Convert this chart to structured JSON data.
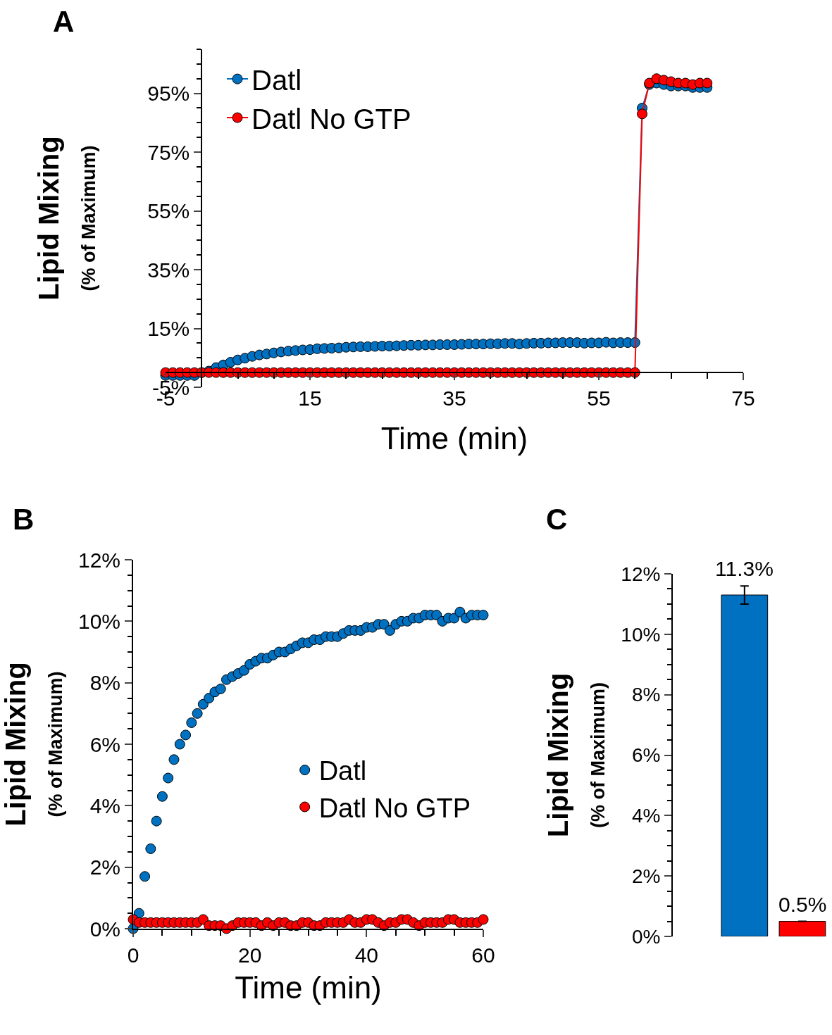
{
  "chart_data": [
    {
      "type": "line",
      "marker": "circle",
      "xlabel": "Time (min)",
      "ylabel": "Lipid Mixing\n(% of Maximum)",
      "annotations": [
        "A"
      ],
      "legend": "top left",
      "x": [
        -5,
        -4,
        -3,
        -2,
        -1,
        0,
        1,
        2,
        3,
        4,
        5,
        6,
        7,
        8,
        9,
        10,
        11,
        12,
        13,
        14,
        15,
        16,
        17,
        18,
        19,
        20,
        21,
        22,
        23,
        24,
        25,
        26,
        27,
        28,
        29,
        30,
        31,
        32,
        33,
        34,
        35,
        36,
        37,
        38,
        39,
        40,
        41,
        42,
        43,
        44,
        45,
        46,
        47,
        48,
        49,
        50,
        51,
        52,
        53,
        54,
        55,
        56,
        57,
        58,
        59,
        60,
        61,
        62,
        63,
        64,
        65,
        66,
        67,
        68,
        69,
        70
      ],
      "xlim": [
        -5,
        75
      ],
      "xticks": [
        -5,
        15,
        35,
        55,
        75
      ],
      "ylim": [
        -5,
        110
      ],
      "yticks": [
        {
          "value": -5,
          "label": "-5%"
        },
        {
          "value": 15,
          "label": "15%"
        },
        {
          "value": 35,
          "label": "35%"
        },
        {
          "value": 55,
          "label": "55%"
        },
        {
          "value": 75,
          "label": "75%"
        },
        {
          "value": 95,
          "label": "95%"
        }
      ],
      "series": [
        {
          "name": "Datl",
          "color": "#0070c0",
          "values": [
            -1,
            -1,
            -1,
            -1,
            -1,
            0,
            0.5,
            1.7,
            2.6,
            3.5,
            4.3,
            4.9,
            5.5,
            6.0,
            6.3,
            6.7,
            7.0,
            7.3,
            7.5,
            7.7,
            7.8,
            8.1,
            8.2,
            8.3,
            8.4,
            8.6,
            8.7,
            8.8,
            8.8,
            8.9,
            9.0,
            9.0,
            9.1,
            9.2,
            9.3,
            9.3,
            9.4,
            9.4,
            9.5,
            9.5,
            9.5,
            9.6,
            9.7,
            9.7,
            9.7,
            9.8,
            9.8,
            9.9,
            9.9,
            9.7,
            9.9,
            10.0,
            10.0,
            10.1,
            10.1,
            10.2,
            10.2,
            10.2,
            10.0,
            10.1,
            10.1,
            10.3,
            10.1,
            10.2,
            10.2,
            10.2,
            90,
            98,
            98.5,
            98,
            97.5,
            97.5,
            97.5,
            97,
            97,
            97
          ]
        },
        {
          "name": "Datl No GTP",
          "color": "#ff0000",
          "values": [
            0,
            0,
            0,
            0,
            0,
            0,
            0,
            0,
            0,
            0,
            0,
            0,
            0,
            0,
            0,
            0,
            0,
            0,
            0,
            0,
            0,
            0,
            0,
            0,
            0,
            0,
            0,
            0,
            0,
            0,
            0,
            0,
            0,
            0,
            0,
            0,
            0,
            0,
            0,
            0,
            0,
            0,
            0,
            0,
            0,
            0,
            0,
            0,
            0,
            0,
            0,
            0,
            0,
            0,
            0,
            0,
            0,
            0,
            0,
            0,
            0,
            0,
            0,
            0,
            0,
            0,
            88,
            98.5,
            100,
            99.5,
            99,
            98.5,
            98.5,
            98,
            98.5,
            98.5
          ]
        }
      ]
    },
    {
      "type": "scatter",
      "marker": "circle",
      "xlabel": "Time (min)",
      "ylabel": "Lipid Mixing\n(% of Maximum)",
      "annotations": [
        "B"
      ],
      "legend": "right",
      "x": [
        0,
        1,
        2,
        3,
        4,
        5,
        6,
        7,
        8,
        9,
        10,
        11,
        12,
        13,
        14,
        15,
        16,
        17,
        18,
        19,
        20,
        21,
        22,
        23,
        24,
        25,
        26,
        27,
        28,
        29,
        30,
        31,
        32,
        33,
        34,
        35,
        36,
        37,
        38,
        39,
        40,
        41,
        42,
        43,
        44,
        45,
        46,
        47,
        48,
        49,
        50,
        51,
        52,
        53,
        54,
        55,
        56,
        57,
        58,
        59,
        60
      ],
      "xlim": [
        0,
        60
      ],
      "xticks": [
        0,
        20,
        40,
        60
      ],
      "ylim": [
        0,
        12
      ],
      "yticks": [
        {
          "value": 0,
          "label": "0%"
        },
        {
          "value": 2,
          "label": "2%"
        },
        {
          "value": 4,
          "label": "4%"
        },
        {
          "value": 6,
          "label": "6%"
        },
        {
          "value": 8,
          "label": "8%"
        },
        {
          "value": 10,
          "label": "10%"
        },
        {
          "value": 12,
          "label": "12%"
        }
      ],
      "series": [
        {
          "name": "Datl",
          "color": "#0070c0",
          "values": [
            0,
            0.5,
            1.7,
            2.6,
            3.5,
            4.3,
            4.9,
            5.5,
            6.0,
            6.3,
            6.7,
            7.0,
            7.3,
            7.5,
            7.7,
            7.8,
            8.1,
            8.2,
            8.3,
            8.4,
            8.6,
            8.7,
            8.8,
            8.8,
            8.9,
            9.0,
            9.0,
            9.1,
            9.2,
            9.3,
            9.3,
            9.4,
            9.4,
            9.5,
            9.5,
            9.5,
            9.6,
            9.7,
            9.7,
            9.7,
            9.8,
            9.8,
            9.9,
            9.9,
            9.7,
            9.9,
            10.0,
            10.0,
            10.1,
            10.1,
            10.2,
            10.2,
            10.2,
            10.0,
            10.1,
            10.1,
            10.3,
            10.1,
            10.2,
            10.2,
            10.2
          ]
        },
        {
          "name": "Datl No GTP",
          "color": "#ff0000",
          "values": [
            0.3,
            0.2,
            0.2,
            0.2,
            0.2,
            0.2,
            0.2,
            0.2,
            0.2,
            0.2,
            0.2,
            0.2,
            0.3,
            0.1,
            0.1,
            0.1,
            0.0,
            0.1,
            0.2,
            0.2,
            0.2,
            0.2,
            0.1,
            0.2,
            0.1,
            0.2,
            0.2,
            0.1,
            0.1,
            0.2,
            0.2,
            0.1,
            0.1,
            0.2,
            0.2,
            0.2,
            0.2,
            0.3,
            0.2,
            0.2,
            0.3,
            0.3,
            0.2,
            0.1,
            0.2,
            0.2,
            0.3,
            0.3,
            0.2,
            0.1,
            0.2,
            0.2,
            0.2,
            0.2,
            0.3,
            0.3,
            0.2,
            0.2,
            0.2,
            0.2,
            0.3
          ]
        }
      ]
    },
    {
      "type": "bar",
      "ylabel": "Lipid Mixing\n(% of Maximum)",
      "annotations": [
        "C"
      ],
      "categories": [
        null,
        null
      ],
      "values": [
        11.3,
        0.5
      ],
      "colors": [
        "#0070c0",
        "#ff0000"
      ],
      "errors": [
        0.3,
        null
      ],
      "value_labels": [
        "11.3%",
        "0.5%"
      ],
      "ylim": [
        0,
        12
      ],
      "yticks": [
        {
          "value": 0,
          "label": "0%"
        },
        {
          "value": 2,
          "label": "2%"
        },
        {
          "value": 4,
          "label": "4%"
        },
        {
          "value": 6,
          "label": "6%"
        },
        {
          "value": 8,
          "label": "8%"
        },
        {
          "value": 10,
          "label": "10%"
        },
        {
          "value": 12,
          "label": "12%"
        }
      ]
    }
  ]
}
